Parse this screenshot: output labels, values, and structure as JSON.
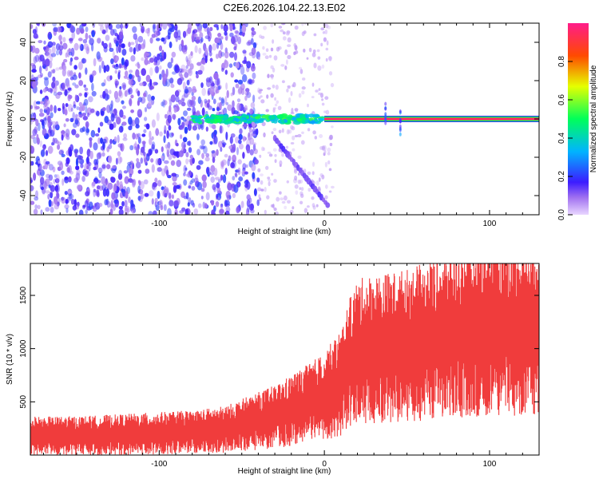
{
  "title": "C2E6.2026.104.22.13.E02",
  "chart_data": [
    {
      "type": "heatmap",
      "xlabel": "Height of straight line (km)",
      "ylabel": "Frequency (Hz)",
      "xlim": [
        -178,
        130
      ],
      "ylim": [
        -50,
        50
      ],
      "xticks": [
        -100,
        0,
        100
      ],
      "yticks": [
        -40,
        -20,
        0,
        20,
        40
      ],
      "grid": false,
      "colorbar": {
        "label": "Normalized spectral amplitude",
        "range": [
          0,
          1
        ],
        "ticks": [
          "0.0",
          "0.2",
          "0.4",
          "0.6",
          "0.8"
        ],
        "tick_values": [
          0.0,
          0.2,
          0.4,
          0.6,
          0.8
        ]
      },
      "features": [
        {
          "kind": "scattered-noise",
          "x_range": [
            -178,
            -40
          ],
          "y_range": [
            -50,
            50
          ],
          "amplitude": 0.12
        },
        {
          "kind": "sparse-noise",
          "x_range": [
            -40,
            5
          ],
          "y_range": [
            -50,
            50
          ],
          "amplitude": 0.05
        },
        {
          "kind": "mixed-carrier",
          "x_range": [
            -80,
            0
          ],
          "frequency": 0,
          "amplitude": [
            0.3,
            0.55
          ]
        },
        {
          "kind": "carrier",
          "x_range": [
            0,
            130
          ],
          "frequency": 0,
          "amplitude": 0.95
        },
        {
          "kind": "diagonal-trace",
          "from": [
            -30,
            -10
          ],
          "to": [
            2,
            -45
          ],
          "amplitude": 0.12
        },
        {
          "kind": "vertical-spikes",
          "x": [
            37,
            46
          ],
          "y_range": [
            -10,
            10
          ],
          "amplitude": 0.2
        }
      ]
    },
    {
      "type": "area",
      "xlabel": "Height of straight line (km)",
      "ylabel": "SNR (10 * v/v)",
      "xlim": [
        -178,
        130
      ],
      "ylim": [
        0,
        1800
      ],
      "xticks": [
        -100,
        0,
        100
      ],
      "yticks": [
        500,
        1000,
        1500
      ],
      "grid": false,
      "color": "#f03c3c",
      "series": [
        {
          "x": [
            -178,
            -160,
            -140,
            -120,
            -100,
            -80,
            -60,
            -50,
            -40,
            -30,
            -20,
            -10,
            0,
            10,
            15,
            20,
            30,
            40,
            50,
            60,
            70,
            80,
            90,
            100,
            110,
            120,
            130
          ],
          "y": [
            180,
            180,
            185,
            195,
            205,
            215,
            240,
            280,
            320,
            360,
            420,
            480,
            550,
            680,
            850,
            970,
            1000,
            1010,
            1030,
            1060,
            1100,
            1130,
            1170,
            1180,
            1190,
            1200,
            1210
          ]
        }
      ]
    }
  ]
}
